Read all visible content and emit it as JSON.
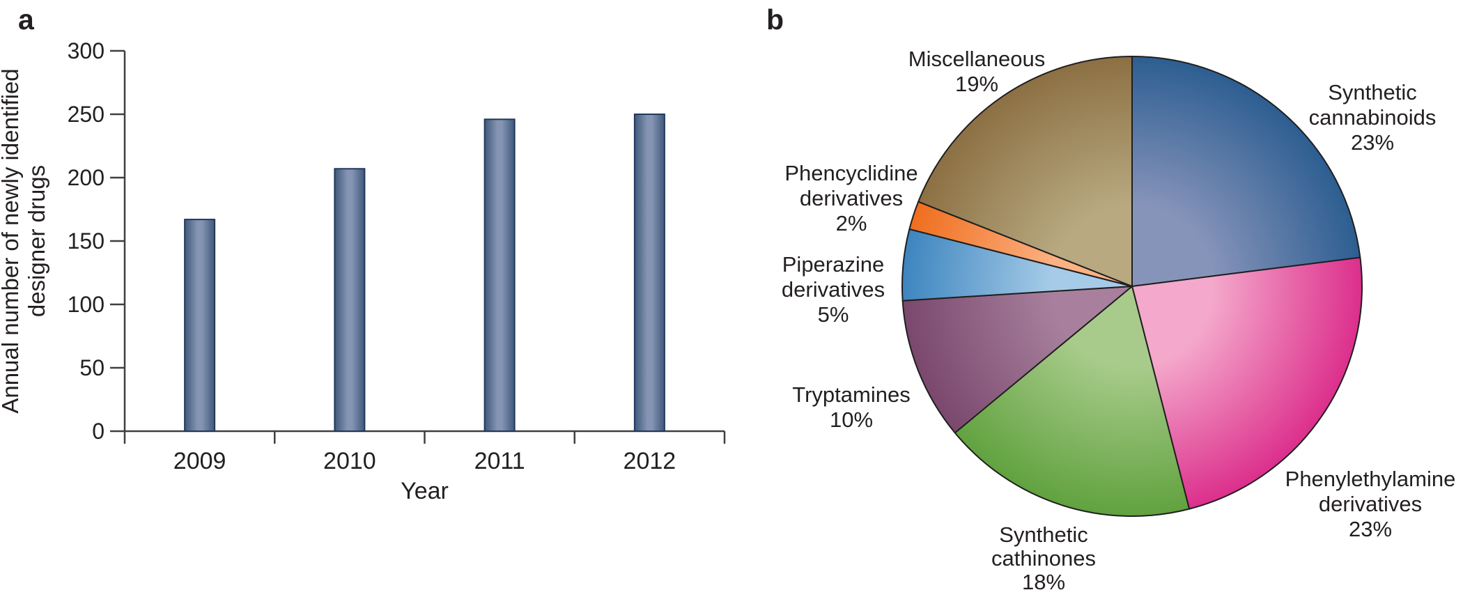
{
  "figure": {
    "panel_a_label": "a",
    "panel_b_label": "b",
    "background": "#ffffff",
    "text_color": "#231f20",
    "axis_color": "#3f3f3f"
  },
  "chart_data": [
    {
      "type": "bar",
      "panel": "a",
      "categories": [
        "2009",
        "2010",
        "2011",
        "2012"
      ],
      "values": [
        167,
        207,
        246,
        250
      ],
      "xlabel": "Year",
      "ylabel_lines": [
        "Annual number of newly identified",
        "designer drugs"
      ],
      "ylim": [
        0,
        300
      ],
      "yticks": [
        300,
        250,
        200,
        150,
        100,
        50,
        0
      ],
      "grid": "off",
      "bar_color_center": "#8494b2",
      "bar_color_edge": "#3f587b",
      "bar_outline": "#22395b"
    },
    {
      "type": "pie",
      "panel": "b",
      "start_angle_deg": 0,
      "direction": "clockwise",
      "outline_color": "#1f1f1f",
      "slices": [
        {
          "label": "Synthetic cannabinoids",
          "pct": 23,
          "label_lines": [
            "Synthetic",
            "cannabinoids",
            "23%"
          ],
          "color_inner": "#8794ba",
          "color_outer": "#2d5e91"
        },
        {
          "label": "Phenylethylamine derivatives",
          "pct": 23,
          "label_lines": [
            "Phenylethylamine",
            "derivatives",
            "23%"
          ],
          "color_inner": "#f4a8cb",
          "color_outer": "#dc2f8c"
        },
        {
          "label": "Synthetic cathinones",
          "pct": 18,
          "label_lines": [
            "Synthetic",
            "cathinones",
            "18%"
          ],
          "color_inner": "#a8cb8b",
          "color_outer": "#61a23f"
        },
        {
          "label": "Tryptamines",
          "pct": 10,
          "label_lines": [
            "Tryptamines",
            "10%"
          ],
          "color_inner": "#a8809d",
          "color_outer": "#7a486d"
        },
        {
          "label": "Piperazine derivatives",
          "pct": 5,
          "label_lines": [
            "Piperazine",
            "derivatives",
            "5%"
          ],
          "color_inner": "#a6cbe8",
          "color_outer": "#3d85bf"
        },
        {
          "label": "Phencyclidine derivatives",
          "pct": 2,
          "label_lines": [
            "Phencyclidine",
            "derivatives",
            "2%"
          ],
          "color_inner": "#fcb183",
          "color_outer": "#ef6e1e"
        },
        {
          "label": "Miscellaneous",
          "pct": 19,
          "label_lines": [
            "Miscellaneous",
            "19%"
          ],
          "color_inner": "#b8a981",
          "color_outer": "#8c7043"
        }
      ]
    }
  ]
}
